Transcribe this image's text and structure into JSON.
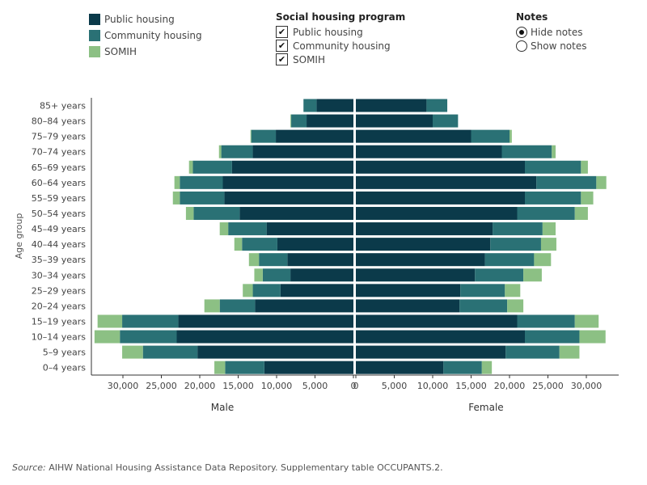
{
  "legend": {
    "items": [
      {
        "label": "Public housing",
        "color": "#0b3a4a"
      },
      {
        "label": "Community housing",
        "color": "#2a7175"
      },
      {
        "label": "SOMIH",
        "color": "#8cc084"
      }
    ]
  },
  "filter": {
    "title": "Social housing program",
    "options": [
      {
        "label": "Public housing",
        "checked": true
      },
      {
        "label": "Community housing",
        "checked": true
      },
      {
        "label": "SOMIH",
        "checked": true
      }
    ]
  },
  "notes": {
    "title": "Notes",
    "options": [
      {
        "label": "Hide notes",
        "selected": true
      },
      {
        "label": "Show notes",
        "selected": false
      }
    ]
  },
  "chart_data": {
    "type": "bar",
    "orientation": "horizontal-population-pyramid",
    "ylabel": "Age group",
    "left_label": "Male",
    "right_label": "Female",
    "xlim": [
      -35000,
      35000
    ],
    "categories": [
      "85+ years",
      "80–84 years",
      "75–79 years",
      "70–74 years",
      "65–69 years",
      "60–64 years",
      "55–59 years",
      "50–54 years",
      "45–49 years",
      "40–44 years",
      "35–39 years",
      "30–34 years",
      "25–29 years",
      "20–24 years",
      "15–19 years",
      "10–14 years",
      "5–9 years",
      "0–4 years"
    ],
    "male_ticks": [
      30000,
      25000,
      20000,
      15000,
      10000,
      5000,
      0
    ],
    "female_ticks": [
      0,
      5000,
      10000,
      15000,
      20000,
      25000,
      30000
    ],
    "male_tick_labels": [
      "30,000",
      "25,000",
      "20,000",
      "15,000",
      "10,000",
      "5,000",
      "0"
    ],
    "female_tick_labels": [
      "0",
      "5,000",
      "10,000",
      "15,000",
      "20,000",
      "25,000",
      "30,000"
    ],
    "series": [
      {
        "name": "Public housing",
        "male": [
          4800,
          6100,
          10100,
          13100,
          15800,
          17000,
          16800,
          14800,
          11300,
          9900,
          8600,
          8200,
          9500,
          12800,
          22800,
          23000,
          20300,
          11600
        ],
        "female": [
          9200,
          10000,
          15000,
          19000,
          22000,
          23500,
          22000,
          21000,
          17800,
          17500,
          16800,
          15500,
          13600,
          13500,
          21000,
          22000,
          19500,
          11400
        ]
      },
      {
        "name": "Community housing",
        "male": [
          1700,
          2000,
          3200,
          4100,
          5100,
          5600,
          5800,
          6000,
          5000,
          4600,
          3700,
          3600,
          3600,
          4600,
          7300,
          7400,
          7100,
          5100
        ],
        "female": [
          2700,
          3300,
          5000,
          6500,
          7300,
          7800,
          7300,
          7500,
          6500,
          6600,
          6400,
          6300,
          5800,
          6200,
          7500,
          7100,
          7000,
          5000
        ]
      },
      {
        "name": "SOMIH",
        "male": [
          0,
          100,
          100,
          300,
          500,
          700,
          900,
          1000,
          1100,
          1000,
          1300,
          1100,
          1300,
          2000,
          3200,
          3300,
          2700,
          1400
        ],
        "female": [
          0,
          0,
          300,
          500,
          900,
          1300,
          1600,
          1700,
          1700,
          2000,
          2200,
          2400,
          2000,
          2100,
          3100,
          3400,
          2600,
          1300
        ]
      }
    ]
  },
  "source": {
    "prefix": "Source:",
    "text": " AIHW National Housing Assistance Data Repository. Supplementary table OCCUPANTS.2."
  }
}
